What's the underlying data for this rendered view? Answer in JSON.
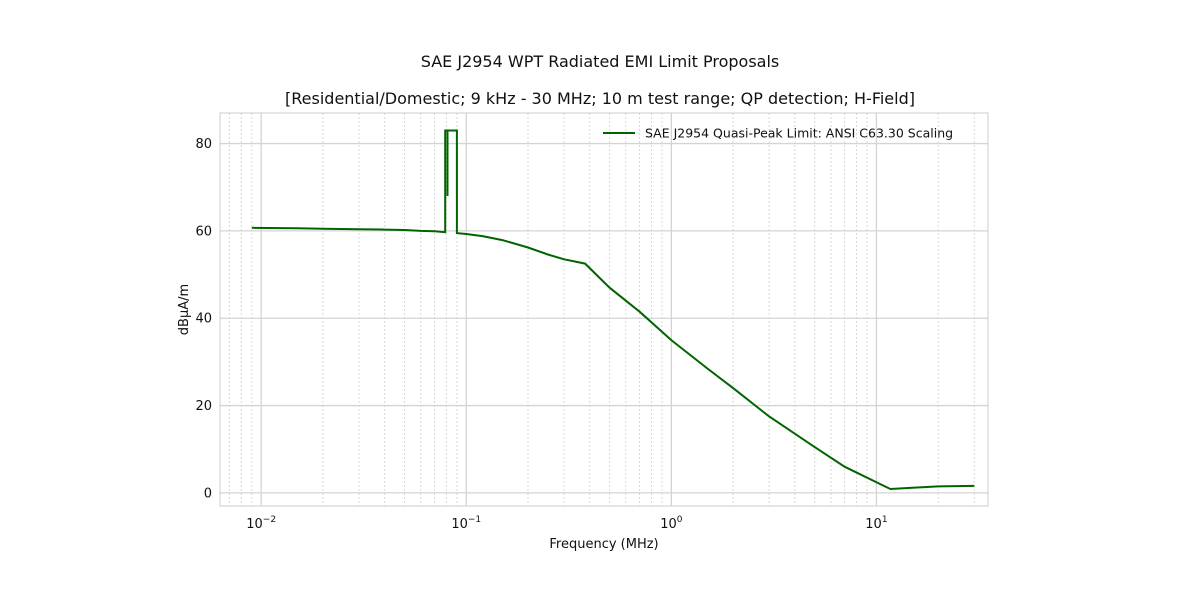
{
  "chart_data": {
    "type": "line",
    "title": "SAE J2954 WPT Radiated EMI Limit Proposals",
    "subtitle": "[Residential/Domestic; 9 kHz - 30 MHz; 10 m test range; QP detection; H-Field]",
    "xlabel": "Frequency (MHz)",
    "ylabel": "dBμA/m",
    "xscale": "log",
    "xlim": [
      0.0063,
      35
    ],
    "ylim": [
      -3,
      87
    ],
    "xticks": [
      {
        "value": 0.01,
        "base": "10",
        "exp": "−2"
      },
      {
        "value": 0.1,
        "base": "10",
        "exp": "−1"
      },
      {
        "value": 1,
        "base": "10",
        "exp": "0"
      },
      {
        "value": 10,
        "base": "10",
        "exp": "1"
      }
    ],
    "yticks": [
      0,
      20,
      40,
      60,
      80
    ],
    "grid": true,
    "legend_position": "top-right",
    "series": [
      {
        "name": "SAE J2954 Quasi-Peak Limit: ANSI C63.30 Scaling",
        "color": "#006400",
        "x": [
          0.009,
          0.015,
          0.02,
          0.03,
          0.04,
          0.05,
          0.06,
          0.07,
          0.079,
          0.079,
          0.081,
          0.081,
          0.081,
          0.081,
          0.09,
          0.09,
          0.09,
          0.09,
          0.09,
          0.1,
          0.12,
          0.15,
          0.2,
          0.25,
          0.3,
          0.38,
          0.5,
          0.7,
          1.0,
          1.5,
          2,
          3,
          5,
          7,
          11.0,
          11.7,
          15,
          20,
          30
        ],
        "y": [
          60.7,
          60.6,
          60.5,
          60.4,
          60.3,
          60.2,
          60.0,
          59.9,
          59.7,
          83,
          83,
          68,
          83,
          83,
          83,
          68,
          83,
          59.5,
          59.5,
          59.3,
          58.8,
          57.9,
          56.2,
          54.6,
          53.5,
          52.5,
          47.0,
          41.5,
          35.0,
          28.5,
          24.0,
          17.5,
          10.5,
          6.0,
          1.5,
          0.9,
          1.2,
          1.5,
          1.6
        ]
      }
    ]
  }
}
